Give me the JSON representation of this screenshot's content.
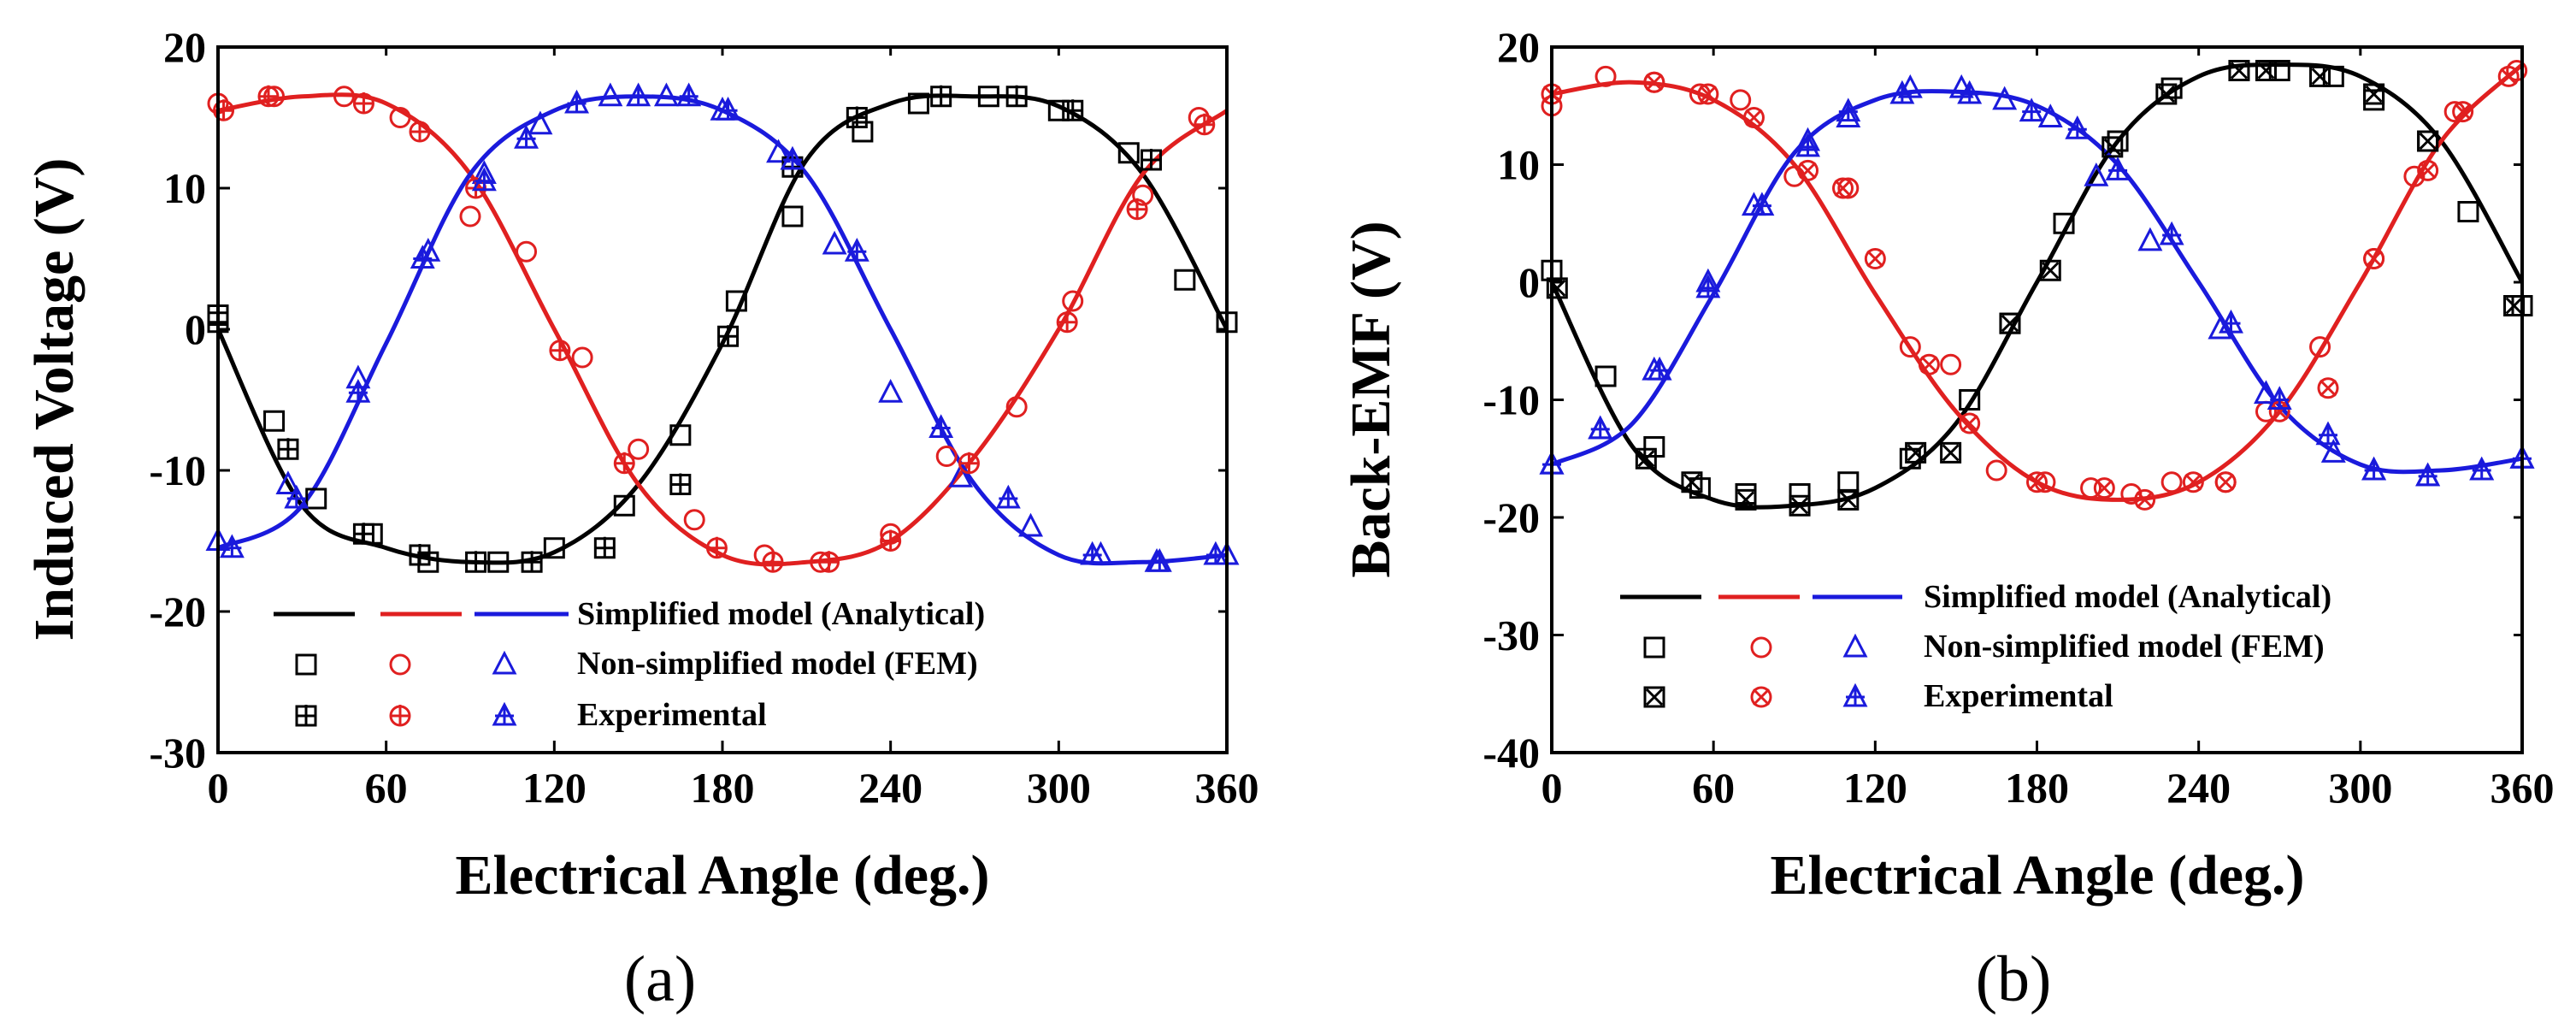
{
  "colors": {
    "phase_a": "#000000",
    "phase_b": "#e02020",
    "phase_c": "#1a1adc"
  },
  "legend": {
    "analytical": "Simplified model (Analytical)",
    "fem": "Non-simplified model (FEM)",
    "experimental": "Experimental"
  },
  "chart_data": [
    {
      "type": "line",
      "caption": "(a)",
      "xlabel": "Electrical Angle (deg.)",
      "ylabel": "Induced Voltage (V)",
      "xlim": [
        0,
        360
      ],
      "ylim": [
        -30,
        20
      ],
      "xticks": [
        0,
        60,
        120,
        180,
        240,
        300,
        360
      ],
      "yticks": [
        -30,
        -20,
        -10,
        0,
        10,
        20
      ],
      "legend_position": "lower-middle",
      "series": [
        {
          "name": "Phase A Simplified model (Analytical)",
          "color": "#000000",
          "style": "line",
          "x": [
            0,
            30,
            60,
            90,
            120,
            150,
            180,
            210,
            240,
            270,
            300,
            330,
            360
          ],
          "y": [
            0,
            -12.5,
            -15.5,
            -16.5,
            -15.8,
            -11,
            -1,
            12,
            16,
            16.5,
            15.8,
            11,
            0
          ]
        },
        {
          "name": "Phase B Simplified model (Analytical)",
          "color": "#e02020",
          "style": "line",
          "x": [
            0,
            30,
            60,
            90,
            120,
            150,
            180,
            210,
            240,
            270,
            300,
            330,
            360
          ],
          "y": [
            15.5,
            16.5,
            16,
            11,
            0,
            -11,
            -16,
            -16.5,
            -15,
            -9,
            0,
            11,
            15.5
          ]
        },
        {
          "name": "Phase C Simplified model (Analytical)",
          "color": "#1a1adc",
          "style": "line",
          "x": [
            0,
            30,
            60,
            90,
            120,
            150,
            180,
            210,
            240,
            270,
            300,
            330,
            360
          ],
          "y": [
            -15.5,
            -12.5,
            -1,
            11,
            15.5,
            16.5,
            15.5,
            11,
            0,
            -11,
            -16,
            -16.5,
            -16
          ]
        },
        {
          "name": "Phase A Non-simplified model (FEM)",
          "color": "#000000",
          "style": "square",
          "x": [
            0,
            20,
            35,
            55,
            75,
            100,
            120,
            145,
            165,
            185,
            205,
            230,
            250,
            275,
            300,
            325,
            345,
            360
          ],
          "y": [
            1,
            -6.5,
            -12,
            -14.5,
            -16.5,
            -16.5,
            -15.5,
            -12.5,
            -7.5,
            2,
            8,
            14,
            16,
            16.5,
            15.5,
            12.5,
            3.5,
            0.5
          ]
        },
        {
          "name": "Phase B Non-simplified model (FEM)",
          "color": "#e02020",
          "style": "circle",
          "x": [
            0,
            20,
            45,
            65,
            90,
            110,
            130,
            150,
            170,
            195,
            215,
            240,
            260,
            285,
            305,
            330,
            350
          ],
          "y": [
            16,
            16.5,
            16.5,
            15,
            8,
            5.5,
            -2,
            -8.5,
            -13.5,
            -16,
            -16.5,
            -14.5,
            -9,
            -5.5,
            2,
            9.5,
            15
          ]
        },
        {
          "name": "Phase C Non-simplified model (FEM)",
          "color": "#1a1adc",
          "style": "triangle",
          "x": [
            0,
            25,
            50,
            75,
            95,
            115,
            140,
            160,
            180,
            200,
            220,
            240,
            265,
            290,
            315,
            335,
            360
          ],
          "y": [
            -15,
            -11,
            -3.5,
            5.5,
            11,
            14.5,
            16.5,
            16.5,
            15.5,
            12.5,
            6,
            -4.5,
            -10.5,
            -14,
            -16,
            -16.5,
            -16
          ]
        },
        {
          "name": "Phase A Experimental",
          "color": "#000000",
          "style": "squareplus",
          "x": [
            0,
            25,
            52,
            72,
            92,
            112,
            138,
            165,
            182,
            205,
            228,
            258,
            285,
            305,
            333
          ],
          "y": [
            0.5,
            -8.5,
            -14.5,
            -16,
            -16.5,
            -16.5,
            -15.5,
            -11,
            -0.5,
            11.5,
            15,
            16.5,
            16.5,
            15.5,
            12
          ]
        },
        {
          "name": "Phase B Experimental",
          "color": "#e02020",
          "style": "circleplus",
          "x": [
            2,
            18,
            52,
            72,
            92,
            122,
            145,
            178,
            198,
            218,
            240,
            268,
            303,
            328,
            352
          ],
          "y": [
            15.5,
            16.5,
            16,
            14,
            10,
            -1.5,
            -9.5,
            -15.5,
            -16.5,
            -16.5,
            -15,
            -9.5,
            0.5,
            8.5,
            14.5
          ]
        },
        {
          "name": "Phase C Experimental",
          "color": "#1a1adc",
          "style": "triangleplus",
          "x": [
            5,
            28,
            50,
            73,
            95,
            110,
            128,
            150,
            168,
            182,
            205,
            228,
            258,
            282,
            312,
            336,
            356
          ],
          "y": [
            -15.5,
            -12,
            -4.5,
            5,
            10.5,
            13.5,
            16,
            16.5,
            16.5,
            15.5,
            12,
            5.5,
            -7,
            -12,
            -16,
            -16.5,
            -16
          ]
        }
      ]
    },
    {
      "type": "line",
      "caption": "(b)",
      "xlabel": "Electrical Angle (deg.)",
      "ylabel": "Back-EMF (V)",
      "xlim": [
        0,
        360
      ],
      "ylim": [
        -40,
        20
      ],
      "xticks": [
        0,
        60,
        120,
        180,
        240,
        300,
        360
      ],
      "yticks": [
        -40,
        -30,
        -20,
        -10,
        0,
        10,
        20
      ],
      "legend_position": "lower-middle",
      "series": [
        {
          "name": "Phase A Simplified model (Analytical)",
          "color": "#000000",
          "style": "line",
          "x": [
            0,
            30,
            60,
            90,
            120,
            150,
            180,
            210,
            240,
            270,
            300,
            330,
            360
          ],
          "y": [
            0,
            -14,
            -18.5,
            -19,
            -17.5,
            -12,
            0,
            12,
            17.5,
            18.5,
            17.5,
            12,
            0
          ]
        },
        {
          "name": "Phase B Simplified model (Analytical)",
          "color": "#e02020",
          "style": "line",
          "x": [
            0,
            30,
            60,
            90,
            120,
            150,
            180,
            210,
            240,
            270,
            300,
            330,
            360
          ],
          "y": [
            16,
            17,
            15.5,
            10,
            -1,
            -11,
            -17,
            -18.5,
            -17,
            -11,
            0,
            12,
            18.5
          ]
        },
        {
          "name": "Phase C Simplified model (Analytical)",
          "color": "#1a1adc",
          "style": "line",
          "x": [
            0,
            30,
            60,
            90,
            120,
            150,
            180,
            210,
            240,
            270,
            300,
            330,
            360
          ],
          "y": [
            -15.5,
            -12,
            -1,
            11,
            15.5,
            16.2,
            15,
            10,
            0,
            -10.5,
            -15.5,
            -16,
            -15
          ]
        },
        {
          "name": "Phase A Non-simplified model (FEM)",
          "color": "#000000",
          "style": "square",
          "x": [
            0,
            20,
            38,
            55,
            72,
            92,
            110,
            133,
            155,
            170,
            190,
            210,
            230,
            255,
            270,
            290,
            305,
            325,
            340,
            360
          ],
          "y": [
            1,
            -8,
            -14,
            -17.5,
            -18,
            -18,
            -17,
            -15,
            -10,
            -3.5,
            5,
            12,
            16.5,
            18,
            18,
            17.5,
            15.5,
            12,
            6,
            -2
          ]
        },
        {
          "name": "Phase B Non-simplified model (FEM)",
          "color": "#e02020",
          "style": "circle",
          "x": [
            0,
            20,
            38,
            55,
            70,
            90,
            110,
            133,
            148,
            165,
            183,
            200,
            215,
            230,
            250,
            265,
            285,
            305,
            320,
            335,
            358
          ],
          "y": [
            15,
            17.5,
            17,
            16,
            15.5,
            9,
            8,
            -5.5,
            -7,
            -16,
            -17,
            -17.5,
            -18,
            -17,
            -17,
            -11,
            -5.5,
            2,
            9,
            14.5,
            18
          ]
        },
        {
          "name": "Phase C Non-simplified model (FEM)",
          "color": "#1a1adc",
          "style": "triangle",
          "x": [
            0,
            18,
            38,
            58,
            75,
            95,
            110,
            133,
            152,
            168,
            185,
            202,
            222,
            248,
            265,
            290,
            305,
            325,
            345,
            360
          ],
          "y": [
            -15.5,
            -12.5,
            -7.5,
            0,
            6.5,
            12,
            14,
            16.5,
            16.5,
            15.5,
            14,
            9,
            3.5,
            -4,
            -9.5,
            -14.5,
            -16,
            -16.5,
            -16,
            -15
          ]
        },
        {
          "name": "Phase A Experimental",
          "color": "#000000",
          "style": "squarex",
          "x": [
            2,
            35,
            52,
            72,
            92,
            110,
            135,
            148,
            170,
            185,
            208,
            228,
            255,
            265,
            285,
            305,
            325,
            357
          ],
          "y": [
            -0.5,
            -15,
            -17,
            -18.5,
            -19,
            -18.5,
            -14.5,
            -14.5,
            -3.5,
            1,
            11.5,
            16,
            18,
            18,
            17.5,
            16,
            12,
            -2
          ]
        },
        {
          "name": "Phase B Experimental",
          "color": "#e02020",
          "style": "circlex",
          "x": [
            0,
            38,
            58,
            75,
            95,
            108,
            120,
            140,
            155,
            180,
            205,
            220,
            238,
            250,
            270,
            288,
            305,
            325,
            338,
            355
          ],
          "y": [
            16,
            17,
            16,
            14,
            9.5,
            8,
            2,
            -7,
            -12,
            -17,
            -17.5,
            -18.5,
            -17,
            -17,
            -11,
            -9,
            2,
            9.5,
            14.5,
            17.5
          ]
        },
        {
          "name": "Phase C Experimental",
          "color": "#1a1adc",
          "style": "triangleplus",
          "x": [
            0,
            18,
            40,
            58,
            78,
            95,
            110,
            130,
            155,
            178,
            195,
            210,
            230,
            252,
            270,
            288,
            305,
            325,
            345,
            360
          ],
          "y": [
            -15.5,
            -12.5,
            -7.5,
            -0.5,
            6.5,
            11.5,
            14.5,
            16,
            16,
            14.5,
            13,
            9.5,
            4,
            -3.5,
            -10,
            -13,
            -16,
            -16.5,
            -16,
            -15
          ]
        }
      ]
    }
  ]
}
